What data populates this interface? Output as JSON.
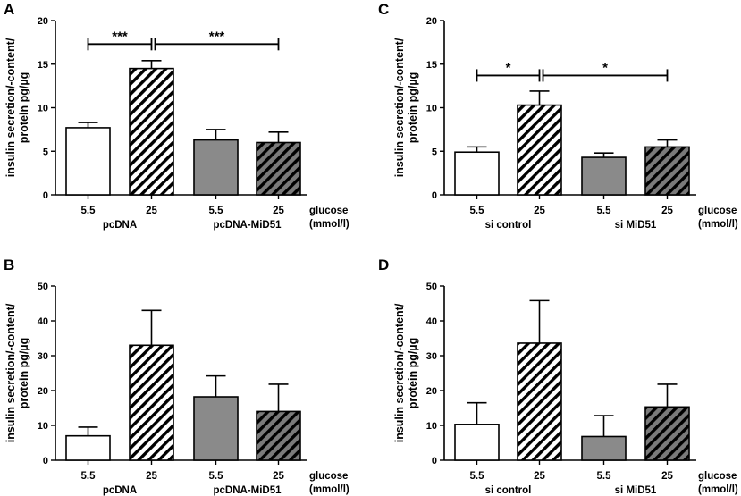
{
  "colors": {
    "white": "#ffffff",
    "gray": "#8a8a8a",
    "hatch_light": "#ffffff",
    "hatch_dark": "#7a7a7a",
    "ink": "#000000"
  },
  "chart_data": [
    {
      "panel": "A",
      "type": "bar",
      "ylabel_line1": "insulin secretion/-content/",
      "ylabel_line2": "protein pg/µg",
      "ylim": [
        0,
        20
      ],
      "yticks": [
        "0",
        "5",
        "10",
        "15",
        "20"
      ],
      "categories": [
        "5.5",
        "25",
        "5.5",
        "25"
      ],
      "groups": [
        "pcDNA",
        "pcDNA-MiD51"
      ],
      "xlabel_line1": "glucose",
      "xlabel_line2": "(mmol/l)",
      "values": [
        7.7,
        14.5,
        6.3,
        6.0
      ],
      "errors": [
        0.6,
        0.9,
        1.2,
        1.2
      ],
      "significance": [
        {
          "from": 0,
          "to": 1,
          "label": "***"
        },
        {
          "from": 1,
          "to": 3,
          "label": "***"
        }
      ]
    },
    {
      "panel": "B",
      "type": "bar",
      "ylabel_line1": "insulin secretion/-content/",
      "ylabel_line2": "protein pg/µg",
      "ylim": [
        0,
        50
      ],
      "yticks": [
        "0",
        "10",
        "20",
        "30",
        "40",
        "50"
      ],
      "categories": [
        "5.5",
        "25",
        "5.5",
        "25"
      ],
      "groups": [
        "pcDNA",
        "pcDNA-MiD51"
      ],
      "xlabel_line1": "glucose",
      "xlabel_line2": "(mmol/l)",
      "values": [
        7.0,
        33.0,
        18.2,
        14.0
      ],
      "errors": [
        2.5,
        10.0,
        6.0,
        7.8
      ],
      "significance": []
    },
    {
      "panel": "C",
      "type": "bar",
      "ylabel_line1": "insulin secretion/-content/",
      "ylabel_line2": "protein pg/µg",
      "ylim": [
        0,
        20
      ],
      "yticks": [
        "0",
        "5",
        "10",
        "15",
        "20"
      ],
      "categories": [
        "5.5",
        "25",
        "5.5",
        "25"
      ],
      "groups": [
        "si control",
        "si MiD51"
      ],
      "xlabel_line1": "glucose",
      "xlabel_line2": "(mmol/l)",
      "values": [
        4.9,
        10.3,
        4.3,
        5.5
      ],
      "errors": [
        0.6,
        1.6,
        0.5,
        0.8
      ],
      "significance": [
        {
          "from": 0,
          "to": 1,
          "label": "*"
        },
        {
          "from": 1,
          "to": 3,
          "label": "*"
        }
      ]
    },
    {
      "panel": "D",
      "type": "bar",
      "ylabel_line1": "insulin secretion/-content/",
      "ylabel_line2": "protein pg/µg",
      "ylim": [
        0,
        50
      ],
      "yticks": [
        "0",
        "10",
        "20",
        "30",
        "40",
        "50"
      ],
      "categories": [
        "5.5",
        "25",
        "5.5",
        "25"
      ],
      "groups": [
        "si control",
        "si MiD51"
      ],
      "xlabel_line1": "glucose",
      "xlabel_line2": "(mmol/l)",
      "values": [
        10.3,
        33.6,
        6.8,
        15.3
      ],
      "errors": [
        6.2,
        12.2,
        6.0,
        6.5
      ],
      "significance": []
    }
  ]
}
